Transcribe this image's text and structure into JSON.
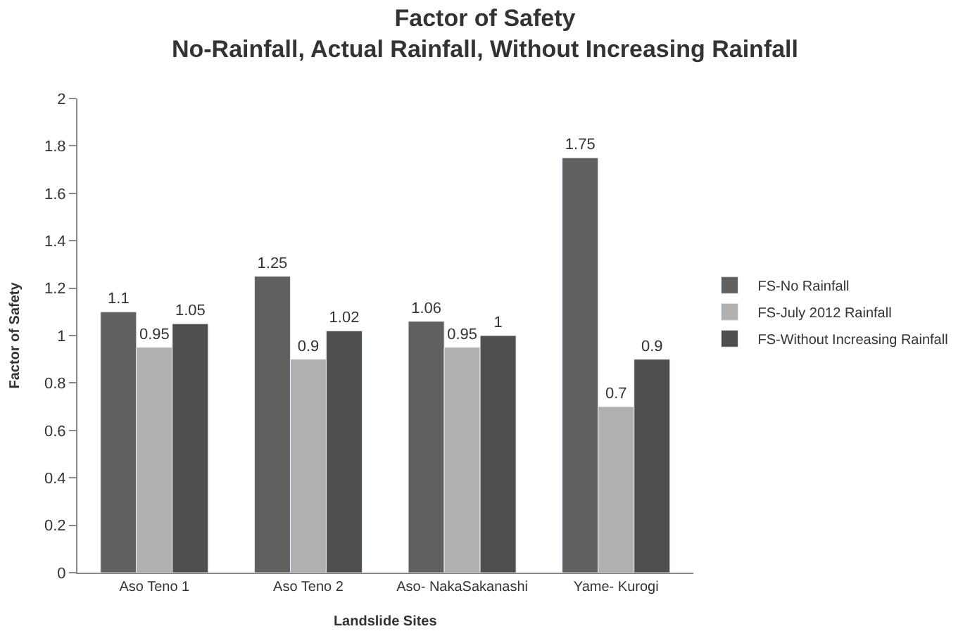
{
  "chart_data": {
    "type": "bar",
    "title": "Factor of Safety",
    "subtitle": "No-Rainfall, Actual Rainfall, Without Increasing Rainfall",
    "xlabel": "Landslide Sites",
    "ylabel": "Factor of Safety",
    "categories": [
      "Aso Teno 1",
      "Aso Teno 2",
      "Aso- NakaSakanashi",
      "Yame- Kurogi"
    ],
    "series": [
      {
        "name": "FS-No Rainfall",
        "color": "#606060",
        "values": [
          1.1,
          1.25,
          1.06,
          1.75
        ]
      },
      {
        "name": "FS-July 2012 Rainfall",
        "color": "#b0b0b0",
        "values": [
          0.95,
          0.9,
          0.95,
          0.7
        ]
      },
      {
        "name": "FS-Without Increasing Rainfall",
        "color": "#4f4f4f",
        "values": [
          1.05,
          1.02,
          1,
          0.9
        ]
      }
    ],
    "ylim": [
      0,
      2
    ],
    "yticks": [
      0,
      0.2,
      0.4,
      0.6,
      0.8,
      1,
      1.2,
      1.4,
      1.6,
      1.8,
      2
    ],
    "legend": "right",
    "data_labels": true
  }
}
